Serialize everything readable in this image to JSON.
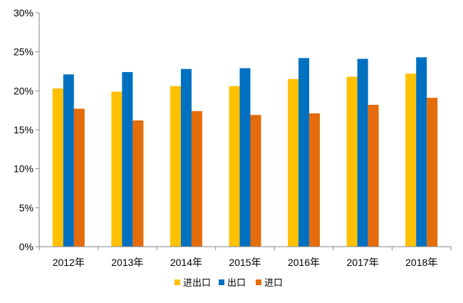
{
  "chart_data": {
    "type": "bar",
    "categories": [
      "2012年",
      "2013年",
      "2014年",
      "2015年",
      "2016年",
      "2017年",
      "2018年"
    ],
    "series": [
      {
        "name": "进出口",
        "color": "#FFC000",
        "values": [
          20.3,
          19.9,
          20.6,
          20.6,
          21.5,
          21.8,
          22.2
        ]
      },
      {
        "name": "出口",
        "color": "#0070C0",
        "values": [
          22.1,
          22.4,
          22.8,
          22.9,
          24.2,
          24.1,
          24.3
        ]
      },
      {
        "name": "进口",
        "color": "#E46C0A",
        "values": [
          17.7,
          16.2,
          17.4,
          16.9,
          17.1,
          18.2,
          19.1
        ]
      }
    ],
    "ylim": [
      0,
      30
    ],
    "yticks": [
      "0%",
      "5%",
      "10%",
      "15%",
      "20%",
      "25%",
      "30%"
    ],
    "ytick_values": [
      0,
      5,
      10,
      15,
      20,
      25,
      30
    ],
    "grid": false,
    "legend_position": "bottom",
    "title": "",
    "xlabel": "",
    "ylabel": ""
  }
}
